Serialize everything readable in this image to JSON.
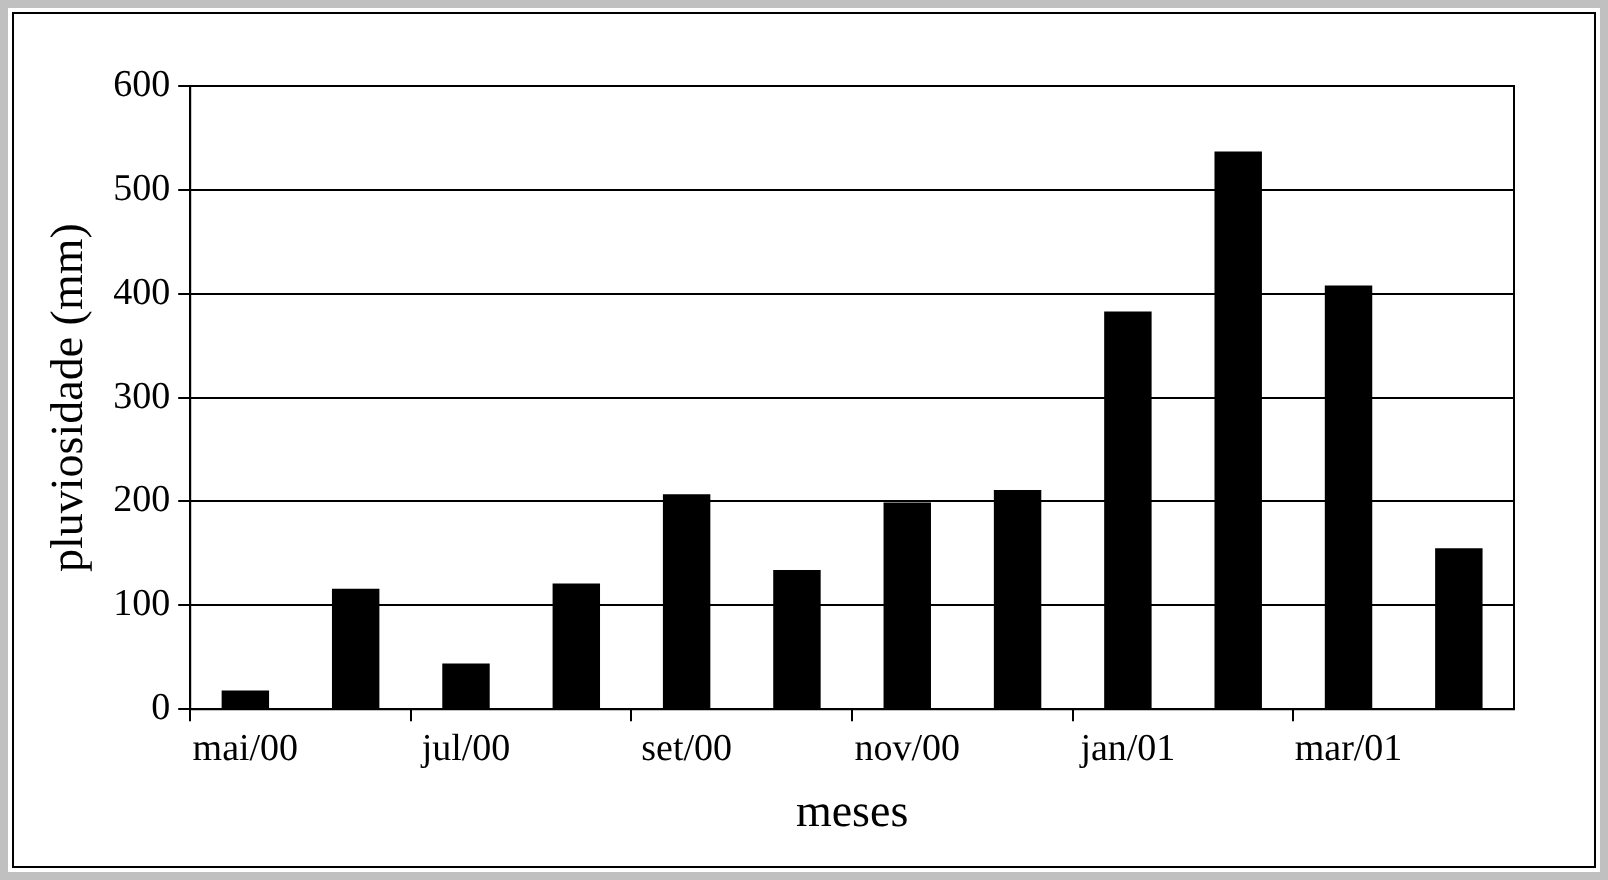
{
  "chart_data": {
    "type": "bar",
    "xlabel": "meses",
    "ylabel": "pluviosidade (mm)",
    "categories": [
      "mai/00",
      null,
      "jul/00",
      null,
      "set/00",
      null,
      "nov/00",
      null,
      "jan/01",
      null,
      "mar/01",
      null
    ],
    "values": [
      18,
      116,
      44,
      121,
      207,
      134,
      199,
      211,
      383,
      537,
      408,
      155
    ],
    "color": "#000000",
    "ylim": [
      0,
      600
    ],
    "yticks": [
      0,
      100,
      200,
      300,
      400,
      500,
      600
    ],
    "grid": "y",
    "legend": false
  }
}
